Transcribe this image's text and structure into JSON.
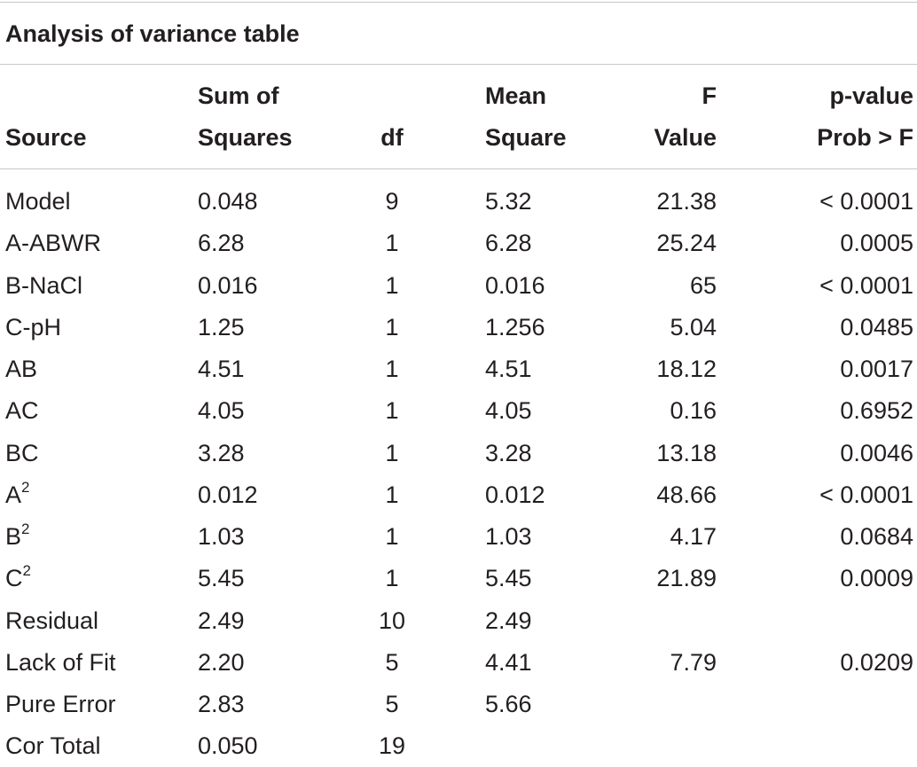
{
  "title": "Analysis of variance table",
  "columns": {
    "source": [
      "",
      "Source"
    ],
    "sum_of_squares": [
      "Sum of",
      "Squares"
    ],
    "df": [
      "",
      "df"
    ],
    "mean_square": [
      "Mean",
      "Square"
    ],
    "f_value": [
      "F",
      "Value"
    ],
    "p_value": [
      "p-value",
      "Prob > F"
    ]
  },
  "rows": [
    {
      "source": "Model",
      "source_sup": "",
      "ss": "0.048",
      "df": "9",
      "ms": "5.32",
      "f": "21.38",
      "p": "<  0.0001"
    },
    {
      "source": "A-ABWR",
      "source_sup": "",
      "ss": "6.28",
      "df": "1",
      "ms": "6.28",
      "f": "25.24",
      "p": "0.0005"
    },
    {
      "source": "B-NaCl",
      "source_sup": "",
      "ss": "0.016",
      "df": "1",
      "ms": "0.016",
      "f": "65",
      "p": "< 0.0001"
    },
    {
      "source": "C-pH",
      "source_sup": "",
      "ss": "1.25",
      "df": "1",
      "ms": "1.256",
      "f": "5.04",
      "p": "0.0485"
    },
    {
      "source": "AB",
      "source_sup": "",
      "ss": "4.51",
      "df": "1",
      "ms": "4.51",
      "f": "18.12",
      "p": "0.0017"
    },
    {
      "source": "AC",
      "source_sup": "",
      "ss": "4.05",
      "df": "1",
      "ms": "4.05",
      "f": "0.16",
      "p": "0.6952"
    },
    {
      "source": "BC",
      "source_sup": "",
      "ss": "3.28",
      "df": "1",
      "ms": "3.28",
      "f": "13.18",
      "p": "0.0046"
    },
    {
      "source": "A",
      "source_sup": "2",
      "ss": "0.012",
      "df": "1",
      "ms": "0.012",
      "f": "48.66",
      "p": "<  0.0001"
    },
    {
      "source": "B",
      "source_sup": "2",
      "ss": "1.03",
      "df": "1",
      "ms": "1.03",
      "f": "4.17",
      "p": "0.0684"
    },
    {
      "source": "C",
      "source_sup": "2",
      "ss": "5.45",
      "df": "1",
      "ms": "5.45",
      "f": "21.89",
      "p": "0.0009"
    },
    {
      "source": "Residual",
      "source_sup": "",
      "ss": "2.49",
      "df": "10",
      "ms": "2.49",
      "f": "",
      "p": ""
    },
    {
      "source": "Lack of Fit",
      "source_sup": "",
      "ss": "2.20",
      "df": "5",
      "ms": "4.41",
      "f": "7.79",
      "p": "0.0209"
    },
    {
      "source": "Pure Error",
      "source_sup": "",
      "ss": "2.83",
      "df": "5",
      "ms": "5.66",
      "f": "",
      "p": ""
    },
    {
      "source": "Cor Total",
      "source_sup": "",
      "ss": "0.050",
      "df": "19",
      "ms": "",
      "f": "",
      "p": ""
    }
  ]
}
